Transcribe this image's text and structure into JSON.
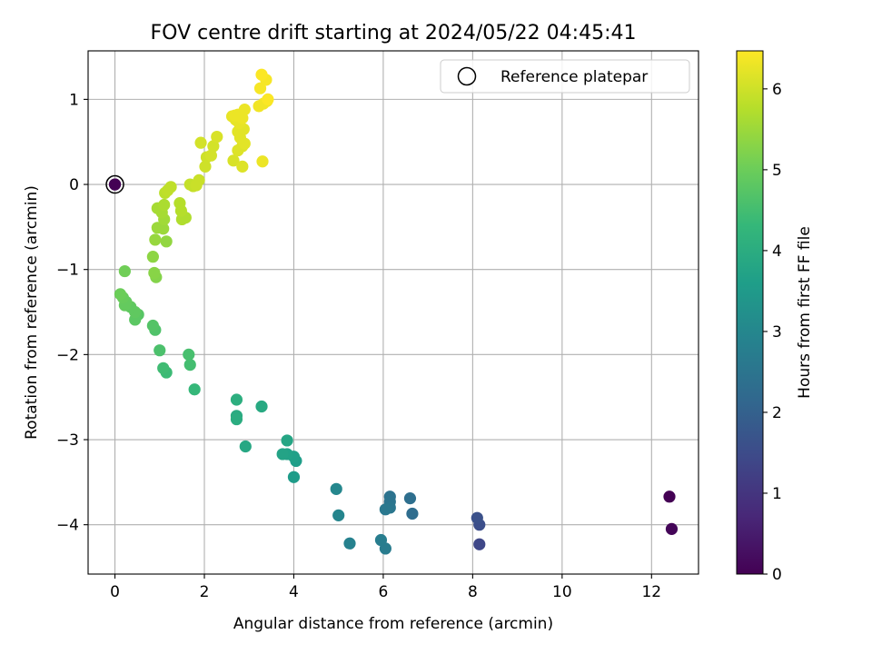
{
  "chart_data": {
    "type": "scatter",
    "title": "FOV centre drift starting at 2024/05/22 04:45:41",
    "xlabel": "Angular distance from reference (arcmin)",
    "ylabel": "Rotation from reference (arcmin)",
    "xlim": [
      -0.6,
      13.05
    ],
    "ylim": [
      -4.58,
      1.57
    ],
    "xticks": [
      0,
      2,
      4,
      6,
      8,
      10,
      12
    ],
    "xtick_labels": [
      "0",
      "2",
      "4",
      "6",
      "8",
      "10",
      "12"
    ],
    "yticks": [
      -4,
      -3,
      -2,
      -1,
      0,
      1
    ],
    "ytick_labels": [
      "−4",
      "−3",
      "−2",
      "−1",
      "0",
      "1"
    ],
    "grid": true,
    "legend": {
      "placement": "top-right",
      "entries": [
        "Reference platepar"
      ]
    },
    "reference_point": {
      "x": 0,
      "y": 0,
      "value": 0
    },
    "colorbar": {
      "label": "Hours from first FF file",
      "colormap": "viridis",
      "range": [
        0,
        6.47
      ],
      "ticks": [
        0,
        1,
        2,
        3,
        4,
        5,
        6
      ],
      "tick_labels": [
        "0",
        "1",
        "2",
        "3",
        "4",
        "5",
        "6"
      ]
    },
    "viridis_stops": [
      "#440154",
      "#482878",
      "#3e4989",
      "#31688e",
      "#26828e",
      "#1f9e89",
      "#35b779",
      "#6ece58",
      "#b5de2b",
      "#fde725"
    ],
    "points": [
      [
        12.4,
        -3.67,
        0.0
      ],
      [
        12.45,
        -4.05,
        0.08
      ],
      [
        0.0,
        0.0,
        0.0
      ],
      [
        8.15,
        -4.23,
        1.4
      ],
      [
        8.15,
        -4.0,
        1.55
      ],
      [
        8.1,
        -3.92,
        1.62
      ],
      [
        6.65,
        -3.87,
        2.3
      ],
      [
        6.6,
        -3.69,
        2.35
      ],
      [
        6.15,
        -3.67,
        2.45
      ],
      [
        6.15,
        -3.73,
        2.5
      ],
      [
        6.15,
        -3.8,
        2.55
      ],
      [
        6.05,
        -3.82,
        2.6
      ],
      [
        6.05,
        -4.28,
        2.7
      ],
      [
        5.95,
        -4.18,
        2.75
      ],
      [
        5.25,
        -4.22,
        2.85
      ],
      [
        5.0,
        -3.89,
        2.95
      ],
      [
        4.95,
        -3.58,
        3.0
      ],
      [
        4.0,
        -3.44,
        3.55
      ],
      [
        4.05,
        -3.25,
        3.6
      ],
      [
        4.0,
        -3.2,
        3.65
      ],
      [
        3.85,
        -3.17,
        3.7
      ],
      [
        3.75,
        -3.17,
        3.75
      ],
      [
        3.85,
        -3.01,
        3.8
      ],
      [
        2.92,
        -3.08,
        3.85
      ],
      [
        3.28,
        -2.61,
        3.9
      ],
      [
        2.72,
        -2.72,
        3.95
      ],
      [
        2.72,
        -2.76,
        4.0
      ],
      [
        2.72,
        -2.53,
        4.05
      ],
      [
        1.78,
        -2.41,
        4.3
      ],
      [
        1.15,
        -2.21,
        4.4
      ],
      [
        1.08,
        -2.16,
        4.45
      ],
      [
        1.68,
        -2.12,
        4.5
      ],
      [
        1.65,
        -2.0,
        4.55
      ],
      [
        1.0,
        -1.95,
        4.6
      ],
      [
        0.9,
        -1.71,
        4.65
      ],
      [
        0.85,
        -1.66,
        4.7
      ],
      [
        0.52,
        -1.53,
        4.75
      ],
      [
        0.45,
        -1.59,
        4.8
      ],
      [
        0.45,
        -1.5,
        4.85
      ],
      [
        0.35,
        -1.44,
        4.85
      ],
      [
        0.25,
        -1.38,
        4.9
      ],
      [
        0.22,
        -1.42,
        4.9
      ],
      [
        0.18,
        -1.33,
        4.95
      ],
      [
        0.12,
        -1.29,
        5.0
      ],
      [
        0.22,
        -1.02,
        5.05
      ],
      [
        0.92,
        -1.09,
        5.25
      ],
      [
        0.88,
        -1.04,
        5.3
      ],
      [
        0.85,
        -0.85,
        5.35
      ],
      [
        1.15,
        -0.67,
        5.4
      ],
      [
        0.9,
        -0.65,
        5.45
      ],
      [
        0.95,
        -0.51,
        5.5
      ],
      [
        1.08,
        -0.52,
        5.5
      ],
      [
        1.1,
        -0.41,
        5.55
      ],
      [
        1.05,
        -0.33,
        5.6
      ],
      [
        0.95,
        -0.28,
        5.6
      ],
      [
        1.1,
        -0.24,
        5.65
      ],
      [
        1.5,
        -0.41,
        5.7
      ],
      [
        1.58,
        -0.39,
        5.7
      ],
      [
        1.48,
        -0.31,
        5.75
      ],
      [
        1.45,
        -0.22,
        5.75
      ],
      [
        1.12,
        -0.1,
        5.8
      ],
      [
        1.25,
        -0.03,
        5.85
      ],
      [
        1.18,
        -0.07,
        5.85
      ],
      [
        1.75,
        -0.02,
        5.9
      ],
      [
        1.68,
        0.0,
        5.9
      ],
      [
        1.88,
        0.05,
        5.95
      ],
      [
        1.82,
        -0.01,
        5.95
      ],
      [
        2.02,
        0.21,
        6.0
      ],
      [
        2.05,
        0.32,
        6.0
      ],
      [
        2.15,
        0.34,
        6.05
      ],
      [
        2.2,
        0.45,
        6.05
      ],
      [
        1.92,
        0.49,
        6.05
      ],
      [
        2.28,
        0.56,
        6.1
      ],
      [
        2.65,
        0.28,
        6.1
      ],
      [
        2.85,
        0.21,
        6.15
      ],
      [
        2.75,
        0.4,
        6.15
      ],
      [
        2.85,
        0.45,
        6.15
      ],
      [
        2.9,
        0.48,
        6.2
      ],
      [
        2.8,
        0.55,
        6.2
      ],
      [
        2.75,
        0.62,
        6.2
      ],
      [
        2.88,
        0.65,
        6.2
      ],
      [
        2.78,
        0.72,
        6.25
      ],
      [
        2.7,
        0.76,
        6.25
      ],
      [
        2.62,
        0.8,
        6.25
      ],
      [
        2.68,
        0.81,
        6.3
      ],
      [
        2.85,
        0.78,
        6.3
      ],
      [
        2.75,
        0.82,
        6.3
      ],
      [
        2.9,
        0.88,
        6.3
      ],
      [
        3.3,
        0.27,
        6.3
      ],
      [
        3.22,
        0.92,
        6.35
      ],
      [
        3.32,
        0.95,
        6.35
      ],
      [
        3.4,
        0.98,
        6.35
      ],
      [
        3.25,
        1.13,
        6.4
      ],
      [
        3.38,
        1.23,
        6.4
      ],
      [
        3.28,
        1.29,
        6.45
      ],
      [
        3.42,
        1.0,
        6.45
      ]
    ]
  }
}
